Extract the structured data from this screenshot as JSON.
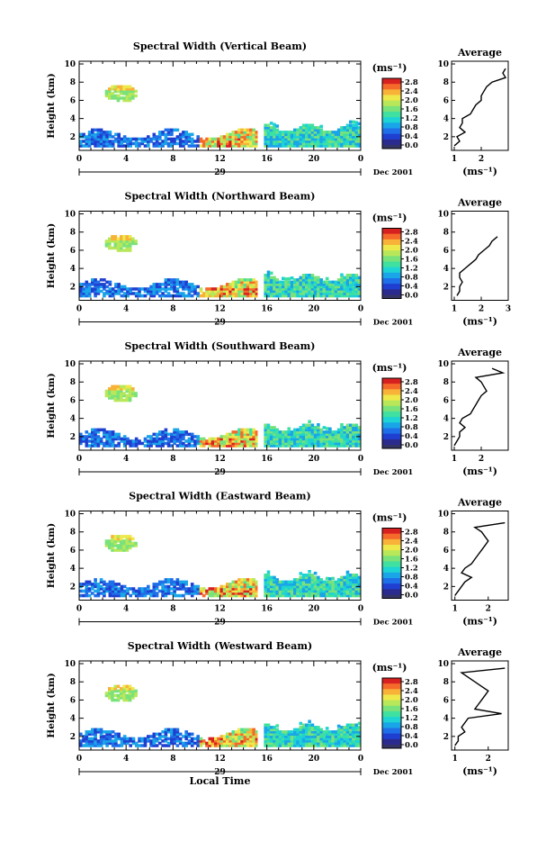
{
  "colors": {
    "scale": [
      "#2b2b8f",
      "#1f3fd0",
      "#1f6fe8",
      "#19a5e8",
      "#1ed3d3",
      "#3fe0a0",
      "#7ae27a",
      "#b8e85a",
      "#eee84a",
      "#f8b238",
      "#f56a2a",
      "#d72020"
    ],
    "lowest": "#333366",
    "line": "#000000"
  },
  "common": {
    "y_label": "Height (km)",
    "x_label": "Local Time",
    "date_label": "Dec 2001",
    "day_label": "29",
    "unit_label": "(ms⁻¹)",
    "average_title": "Average",
    "average_unit": "(ms⁻¹)",
    "y_ticks": [
      "10",
      "8",
      "6",
      "4",
      "2"
    ],
    "x_ticks": [
      "0",
      "4",
      "8",
      "12",
      "16",
      "20",
      "0"
    ],
    "colorbar_ticks": [
      "2.8",
      "2.4",
      "2.0",
      "1.6",
      "1.2",
      "0.8",
      "0.4",
      "0.0"
    ],
    "ylim_km": [
      0.5,
      10.3
    ],
    "xlim_hours": [
      0,
      24
    ]
  },
  "chart_data": [
    {
      "type": "heatmap",
      "title": "Spectral Width (Vertical Beam)",
      "beam": "vertical",
      "profile": {
        "xlim": [
          0.9,
          3.0
        ],
        "xticks": [
          "1",
          "2"
        ],
        "height_km": [
          1.0,
          1.5,
          2.0,
          2.5,
          3.0,
          3.5,
          4.0,
          4.5,
          5.0,
          5.5,
          6.0,
          6.5,
          7.0,
          7.5,
          8.0,
          8.5,
          9.0,
          9.5
        ],
        "width_ms": [
          1.0,
          1.2,
          1.1,
          1.4,
          1.2,
          1.3,
          1.3,
          1.6,
          1.7,
          1.8,
          2.0,
          2.0,
          2.1,
          2.2,
          2.4,
          2.9,
          2.8,
          2.9
        ]
      }
    },
    {
      "type": "heatmap",
      "title": "Spectral Width (Northward Beam)",
      "beam": "northward",
      "profile": {
        "xlim": [
          0.9,
          3.0
        ],
        "xticks": [
          "1",
          "2",
          "3"
        ],
        "height_km": [
          1.0,
          1.5,
          2.0,
          2.5,
          3.0,
          3.5,
          4.0,
          4.5,
          5.0,
          5.5,
          6.0,
          6.5,
          7.0,
          7.5
        ],
        "width_ms": [
          1.1,
          1.2,
          1.2,
          1.3,
          1.2,
          1.2,
          1.4,
          1.6,
          1.8,
          1.9,
          2.1,
          2.3,
          2.4,
          2.6
        ]
      }
    },
    {
      "type": "heatmap",
      "title": "Spectral Width (Southward Beam)",
      "beam": "southward",
      "profile": {
        "xlim": [
          0.9,
          3.0
        ],
        "xticks": [
          "1",
          "2"
        ],
        "height_km": [
          1.0,
          1.5,
          2.0,
          2.5,
          3.0,
          3.5,
          4.0,
          4.5,
          5.0,
          5.5,
          6.0,
          6.5,
          7.0,
          7.5,
          8.0,
          8.5,
          9.0,
          9.5
        ],
        "width_ms": [
          1.0,
          1.1,
          1.2,
          1.2,
          1.4,
          1.2,
          1.3,
          1.6,
          1.7,
          1.8,
          1.9,
          2.0,
          2.2,
          2.1,
          2.0,
          1.8,
          2.8,
          2.4
        ]
      }
    },
    {
      "type": "heatmap",
      "title": "Spectral Width (Eastward Beam)",
      "beam": "eastward",
      "profile": {
        "xlim": [
          0.9,
          2.6
        ],
        "xticks": [
          "1",
          "2"
        ],
        "height_km": [
          1.0,
          1.5,
          2.0,
          2.5,
          3.0,
          3.5,
          4.0,
          4.5,
          5.0,
          5.5,
          6.0,
          6.5,
          7.0,
          7.5,
          8.0,
          8.5,
          9.0
        ],
        "width_ms": [
          1.0,
          1.1,
          1.2,
          1.3,
          1.5,
          1.2,
          1.3,
          1.5,
          1.6,
          1.7,
          1.8,
          1.9,
          2.0,
          1.9,
          1.8,
          1.6,
          2.5
        ]
      }
    },
    {
      "type": "heatmap",
      "title": "Spectral Width (Westward Beam)",
      "beam": "westward",
      "profile": {
        "xlim": [
          0.9,
          2.6
        ],
        "xticks": [
          "1",
          "2"
        ],
        "height_km": [
          1.0,
          1.5,
          2.0,
          2.5,
          3.0,
          3.5,
          4.0,
          4.5,
          5.0,
          5.5,
          6.0,
          6.5,
          7.0,
          7.5,
          8.0,
          8.5,
          9.0,
          9.5
        ],
        "width_ms": [
          1.0,
          1.1,
          1.1,
          1.3,
          1.2,
          1.3,
          1.4,
          2.4,
          1.6,
          1.7,
          1.8,
          1.9,
          2.0,
          1.8,
          1.6,
          1.4,
          1.2,
          2.5
        ]
      }
    }
  ]
}
